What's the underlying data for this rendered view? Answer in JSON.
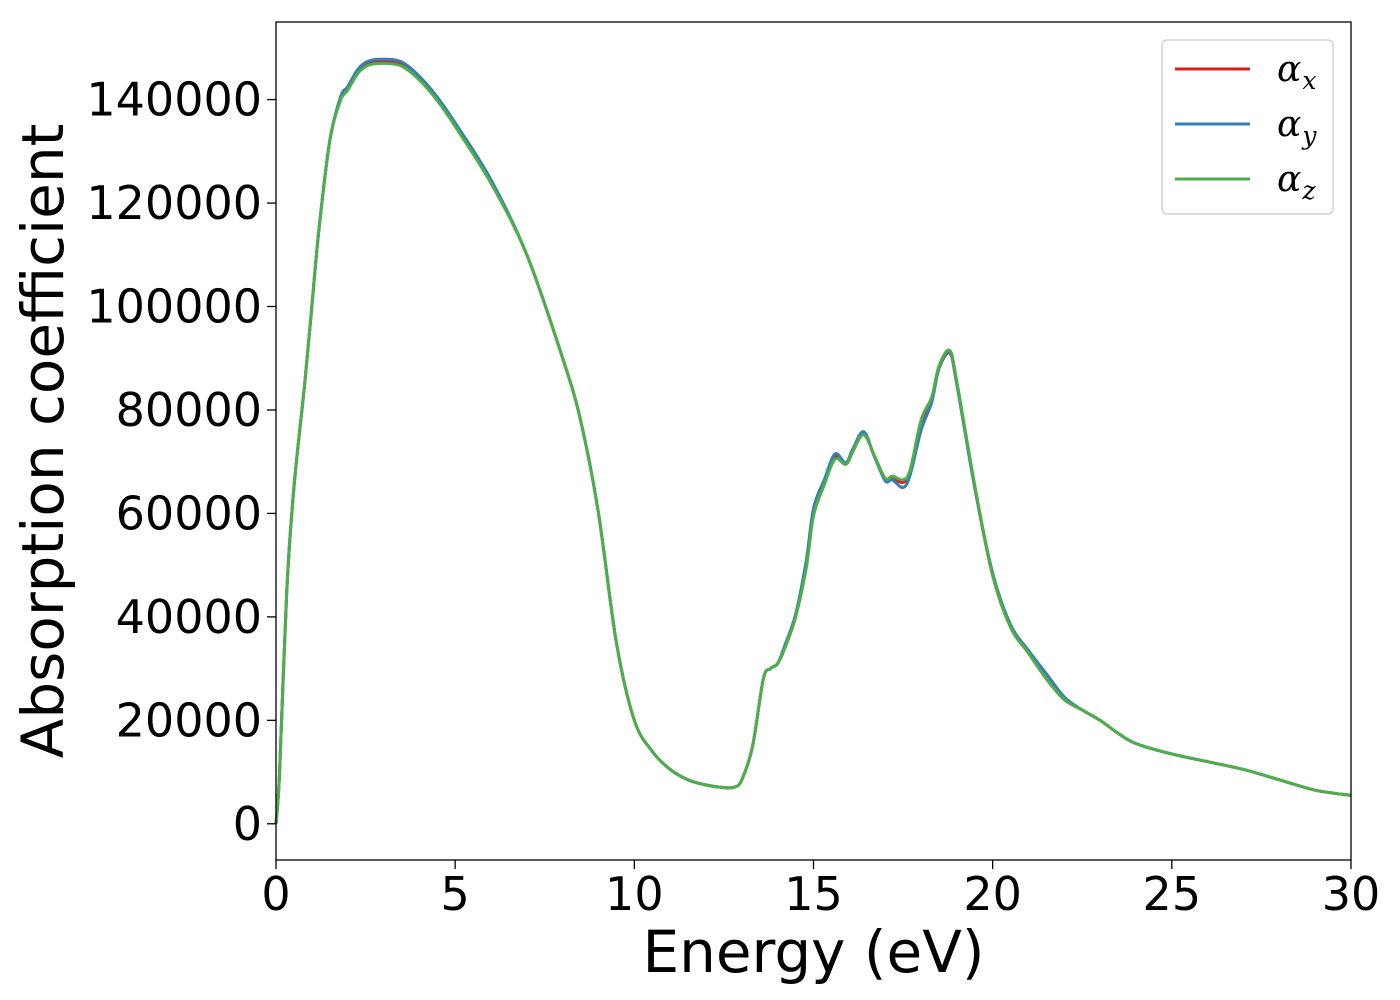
{
  "chart_data": {
    "type": "line",
    "xlabel": "Energy (eV)",
    "ylabel": "Absorption coefficient",
    "xlim": [
      0,
      30
    ],
    "ylim": [
      -7000,
      155000
    ],
    "xticks": [
      0,
      5,
      10,
      15,
      20,
      25,
      30
    ],
    "yticks": [
      0,
      20000,
      40000,
      60000,
      80000,
      100000,
      120000,
      140000
    ],
    "grid": false,
    "legend_position": "top-right",
    "series": [
      {
        "name": "α",
        "subscript": "x",
        "color": "#e41a1c",
        "x": [
          0,
          0.1,
          0.3,
          0.5,
          0.8,
          1.0,
          1.2,
          1.5,
          1.8,
          2.0,
          2.3,
          2.6,
          3.0,
          3.5,
          4.0,
          4.5,
          5.0,
          6.0,
          7.0,
          8.0,
          8.5,
          9.0,
          9.5,
          10.0,
          10.5,
          11.0,
          11.5,
          12.0,
          12.5,
          12.8,
          13.0,
          13.3,
          13.6,
          13.8,
          14.0,
          14.2,
          14.5,
          14.8,
          15.0,
          15.3,
          15.6,
          15.9,
          16.1,
          16.4,
          16.7,
          17.0,
          17.2,
          17.5,
          17.7,
          18.0,
          18.3,
          18.5,
          18.8,
          19.0,
          19.5,
          20.0,
          20.5,
          21.0,
          21.5,
          22.0,
          22.5,
          23.0,
          23.5,
          24.0,
          25.0,
          26.0,
          27.0,
          28.0,
          29.0,
          30.0
        ],
        "values": [
          0,
          10000,
          45000,
          65000,
          85000,
          100000,
          115000,
          132000,
          140000,
          142000,
          145500,
          147000,
          147300,
          146800,
          144000,
          140000,
          135000,
          124000,
          110000,
          90000,
          78000,
          60000,
          35000,
          20000,
          14000,
          10500,
          8500,
          7500,
          7000,
          7100,
          8500,
          15000,
          28000,
          30000,
          31000,
          34000,
          40000,
          50000,
          60000,
          66000,
          71000,
          69500,
          72000,
          75500,
          71000,
          66500,
          66800,
          66000,
          68000,
          77000,
          82000,
          88000,
          91000,
          85000,
          65000,
          48000,
          38000,
          33000,
          28000,
          24000,
          22000,
          20000,
          17500,
          15500,
          13500,
          12000,
          10500,
          8500,
          6500,
          5500
        ]
      },
      {
        "name": "α",
        "subscript": "y",
        "color": "#377eb8",
        "x": [
          0,
          0.1,
          0.3,
          0.5,
          0.8,
          1.0,
          1.2,
          1.5,
          1.8,
          2.0,
          2.3,
          2.6,
          3.0,
          3.5,
          4.0,
          4.5,
          5.0,
          6.0,
          7.0,
          8.0,
          8.5,
          9.0,
          9.5,
          10.0,
          10.5,
          11.0,
          11.5,
          12.0,
          12.5,
          12.8,
          13.0,
          13.3,
          13.6,
          13.8,
          14.0,
          14.2,
          14.5,
          14.8,
          15.0,
          15.3,
          15.6,
          15.9,
          16.1,
          16.4,
          16.7,
          17.0,
          17.2,
          17.5,
          17.7,
          18.0,
          18.3,
          18.5,
          18.8,
          19.0,
          19.5,
          20.0,
          20.5,
          21.0,
          21.5,
          22.0,
          22.5,
          23.0,
          23.5,
          24.0,
          25.0,
          26.0,
          27.0,
          28.0,
          29.0,
          30.0
        ],
        "values": [
          0,
          10000,
          45000,
          65000,
          85000,
          100000,
          115000,
          132000,
          140500,
          142500,
          146000,
          147500,
          147800,
          147300,
          144500,
          140500,
          135500,
          124500,
          110000,
          90000,
          78000,
          60000,
          35000,
          20000,
          14000,
          10500,
          8500,
          7500,
          7000,
          7100,
          8500,
          15000,
          28000,
          30000,
          31000,
          34500,
          40500,
          51000,
          61000,
          66500,
          71500,
          69800,
          72500,
          75800,
          71000,
          66300,
          66500,
          65000,
          67500,
          76000,
          81500,
          88000,
          91200,
          85000,
          65000,
          48500,
          38500,
          33500,
          29000,
          24500,
          22000,
          20000,
          17500,
          15500,
          13500,
          12000,
          10500,
          8500,
          6500,
          5500
        ]
      },
      {
        "name": "α",
        "subscript": "z",
        "color": "#4daf4a",
        "x": [
          0,
          0.1,
          0.3,
          0.5,
          0.8,
          1.0,
          1.2,
          1.5,
          1.8,
          2.0,
          2.3,
          2.6,
          3.0,
          3.5,
          4.0,
          4.5,
          5.0,
          6.0,
          7.0,
          8.0,
          8.5,
          9.0,
          9.5,
          10.0,
          10.5,
          11.0,
          11.5,
          12.0,
          12.5,
          12.8,
          13.0,
          13.3,
          13.6,
          13.8,
          14.0,
          14.2,
          14.5,
          14.8,
          15.0,
          15.3,
          15.6,
          15.9,
          16.1,
          16.4,
          16.7,
          17.0,
          17.2,
          17.5,
          17.7,
          18.0,
          18.3,
          18.5,
          18.8,
          19.0,
          19.5,
          20.0,
          20.5,
          21.0,
          21.5,
          22.0,
          22.5,
          23.0,
          23.5,
          24.0,
          25.0,
          26.0,
          27.0,
          28.0,
          29.0,
          30.0
        ],
        "values": [
          0,
          10000,
          45000,
          65000,
          85000,
          100000,
          115000,
          132000,
          139800,
          141800,
          145200,
          146700,
          147000,
          146500,
          143800,
          139800,
          134800,
          123800,
          110000,
          90000,
          78000,
          60000,
          35000,
          20000,
          14000,
          10500,
          8500,
          7500,
          7000,
          7100,
          8500,
          15000,
          28000,
          30000,
          31000,
          34000,
          40000,
          49500,
          59500,
          65500,
          70500,
          69500,
          72000,
          75200,
          71200,
          66800,
          67200,
          66500,
          68500,
          78000,
          82500,
          88500,
          91500,
          85500,
          65500,
          48000,
          38000,
          33000,
          28000,
          24000,
          22000,
          20000,
          17500,
          15500,
          13500,
          12000,
          10500,
          8500,
          6500,
          5500
        ]
      }
    ]
  }
}
